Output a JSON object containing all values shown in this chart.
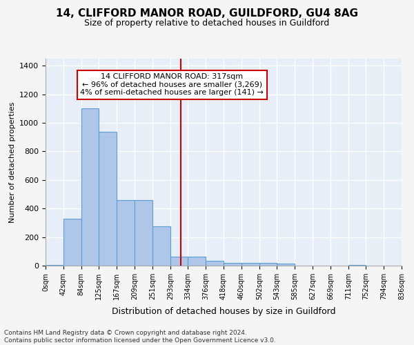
{
  "title1": "14, CLIFFORD MANOR ROAD, GUILDFORD, GU4 8AG",
  "title2": "Size of property relative to detached houses in Guildford",
  "xlabel": "Distribution of detached houses by size in Guildford",
  "ylabel": "Number of detached properties",
  "bin_edges": [
    0,
    42,
    84,
    125,
    167,
    209,
    251,
    293,
    334,
    376,
    418,
    460,
    502,
    543,
    585,
    627,
    669,
    711,
    752,
    794,
    836
  ],
  "bar_heights": [
    5,
    330,
    1100,
    940,
    460,
    460,
    275,
    65,
    65,
    35,
    20,
    20,
    20,
    15,
    0,
    0,
    0,
    5,
    0,
    0
  ],
  "bar_color": "#aec6e8",
  "bar_edge_color": "#5a9fd4",
  "background_color": "#e8eef8",
  "grid_color": "#ffffff",
  "property_size": 317,
  "vline_color": "#cc0000",
  "annotation_text": "14 CLIFFORD MANOR ROAD: 317sqm\n← 96% of detached houses are smaller (3,269)\n4% of semi-detached houses are larger (141) →",
  "annotation_box_color": "#ffffff",
  "annotation_box_edge_color": "#cc0000",
  "ylim": [
    0,
    1450
  ],
  "yticks": [
    0,
    200,
    400,
    600,
    800,
    1000,
    1200,
    1400
  ],
  "fig_bg_color": "#f5f5f5",
  "footer1": "Contains HM Land Registry data © Crown copyright and database right 2024.",
  "footer2": "Contains public sector information licensed under the Open Government Licence v3.0."
}
